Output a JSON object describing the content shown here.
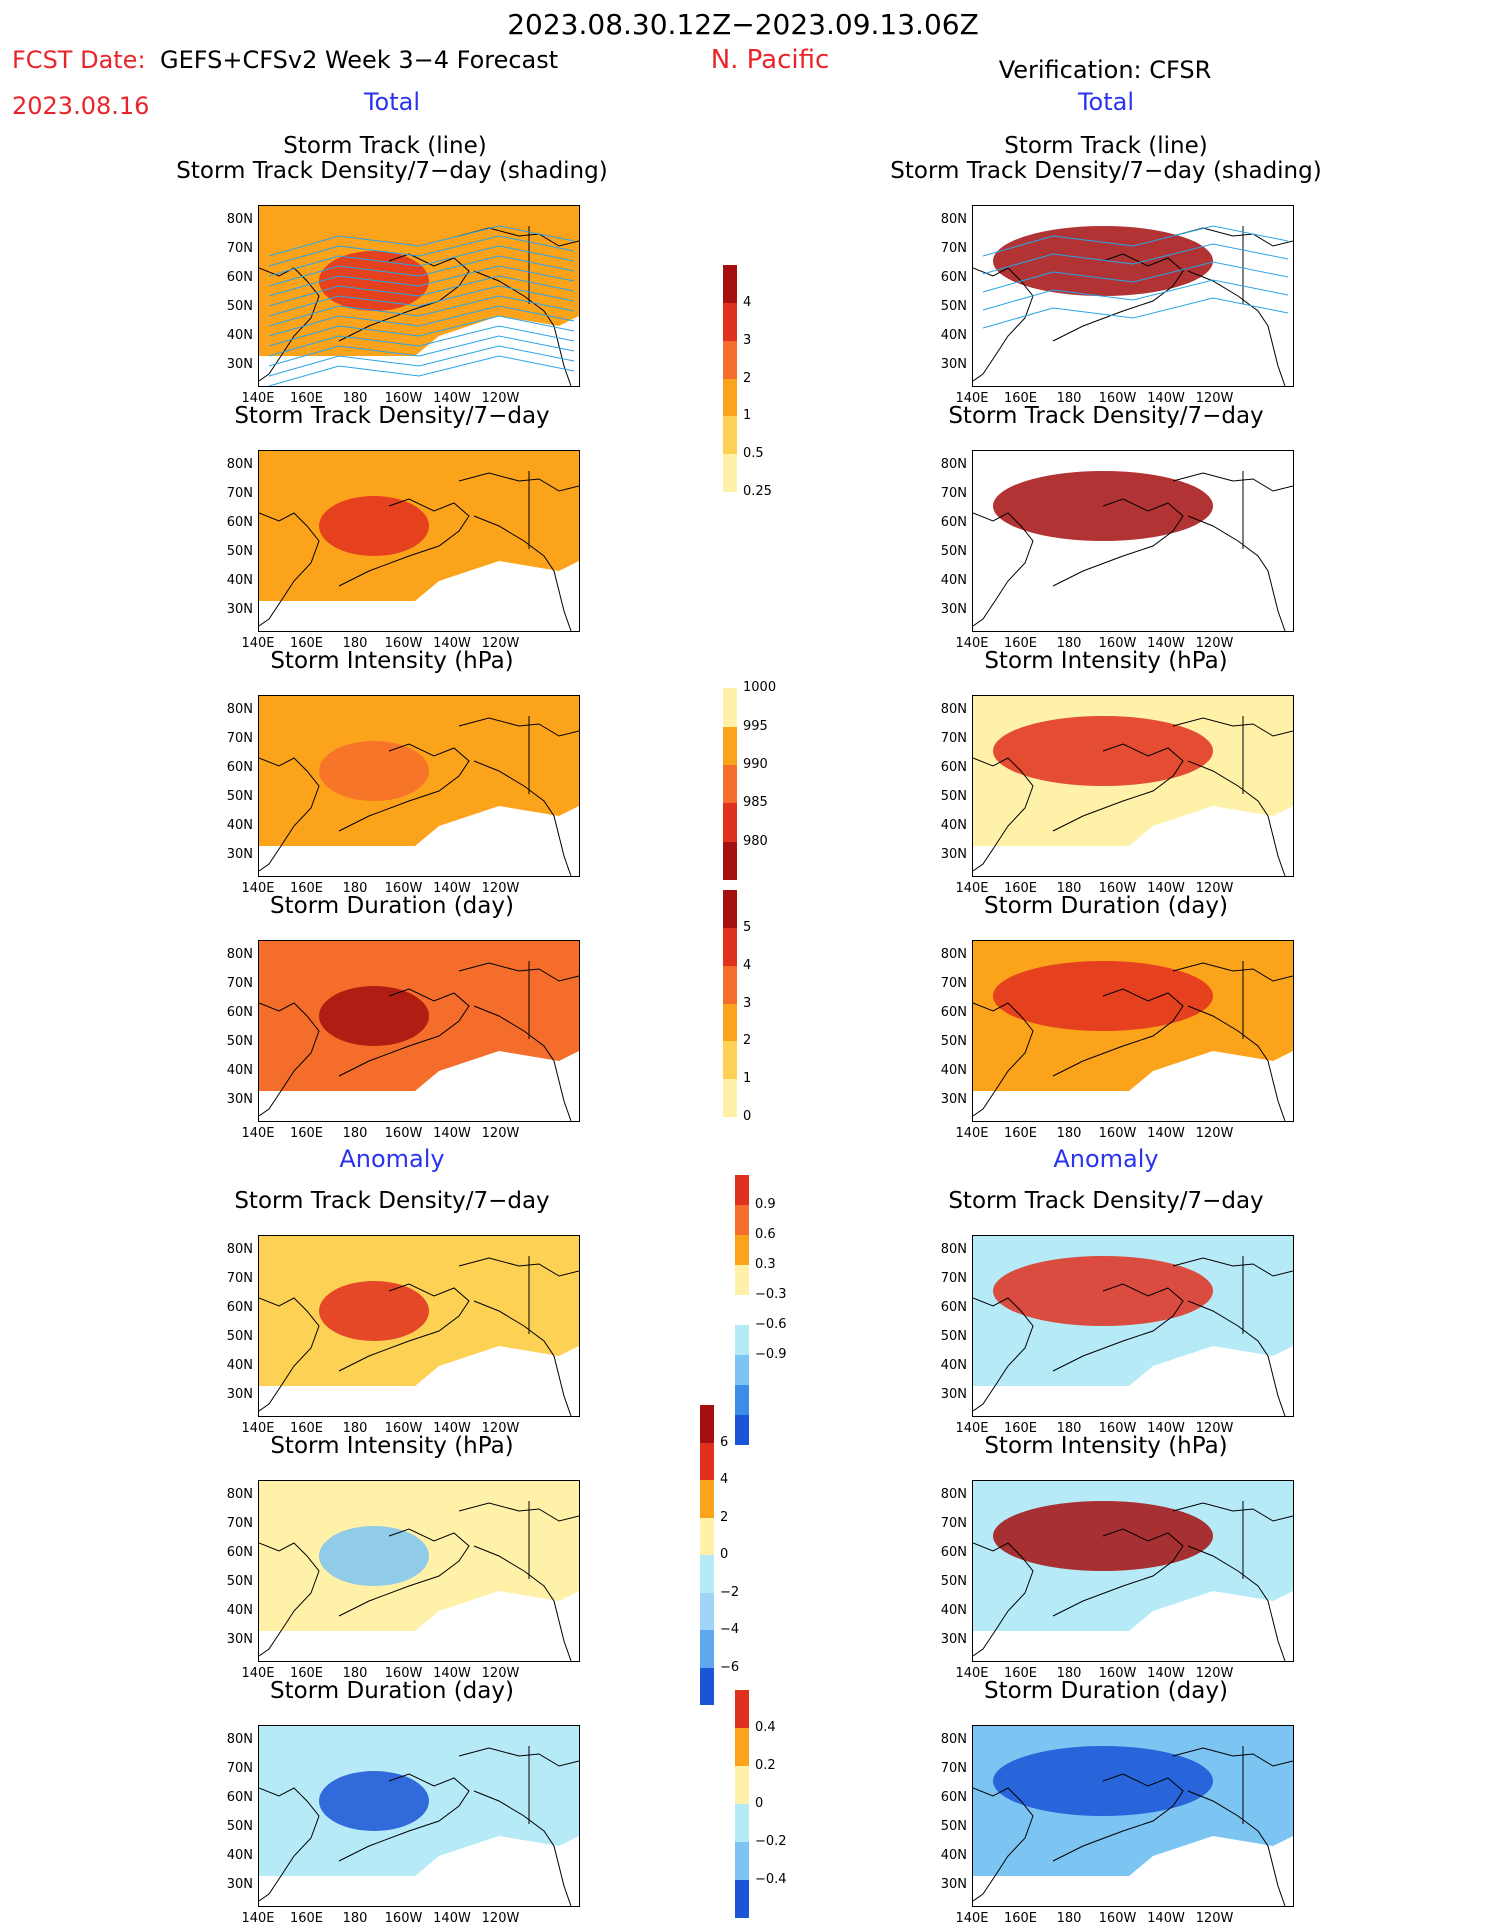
{
  "header": {
    "dates": "2023.08.30.12Z−2023.09.13.06Z",
    "fcst_label": "FCST Date:",
    "fcst_date": "2023.08.16",
    "model": "GEFS+CFSv2 Week 3−4 Forecast",
    "region": "N. Pacific",
    "verification": "Verification: CFSR",
    "left_total": "Total",
    "right_total": "Total",
    "left_anomaly": "Anomaly",
    "right_anomaly": "Anomaly"
  },
  "panel_titles": {
    "track_line": "Storm Track (line)",
    "track_shading": "Storm Track Density/7−day (shading)",
    "density": "Storm Track Density/7−day",
    "intensity": "Storm Intensity (hPa)",
    "duration": "Storm Duration (day)"
  },
  "axes": {
    "lat_labels": [
      "80N",
      "70N",
      "60N",
      "50N",
      "40N",
      "30N"
    ],
    "lon_labels": [
      "140E",
      "160E",
      "180",
      "160W",
      "140W",
      "120W"
    ]
  },
  "colorbars": {
    "density_total": {
      "labels": [
        "4",
        "3",
        "2",
        "1",
        "0.5",
        "0.25"
      ],
      "colors": [
        "#a50f0f",
        "#e0301e",
        "#f46d2a",
        "#fca31c",
        "#fdd154",
        "#fff2a8",
        "#ffffff"
      ]
    },
    "intensity_total": {
      "labels": [
        "1000",
        "995",
        "990",
        "985",
        "980"
      ],
      "colors": [
        "#ffffff",
        "#fff2a8",
        "#fca31c",
        "#f46d2a",
        "#e0301e",
        "#a50f0f"
      ]
    },
    "duration_total": {
      "labels": [
        "5",
        "4",
        "3",
        "2",
        "1",
        "0"
      ],
      "colors": [
        "#a50f0f",
        "#e0301e",
        "#f46d2a",
        "#fca31c",
        "#fdd154",
        "#fff2a8",
        "#ffffff"
      ]
    },
    "density_anom": {
      "labels": [
        "0.9",
        "0.6",
        "0.3",
        "−0.3",
        "−0.6",
        "−0.9"
      ],
      "colors": [
        "#e0301e",
        "#f46d2a",
        "#fca31c",
        "#fff2a8",
        "#ffffff",
        "#b6eaf7",
        "#7cc4f2",
        "#3d8de8",
        "#1a55d6"
      ]
    },
    "intensity_anom": {
      "labels": [
        "6",
        "4",
        "2",
        "0",
        "−2",
        "−4",
        "−6"
      ],
      "colors": [
        "#a50f0f",
        "#e0301e",
        "#fca31c",
        "#fff2a8",
        "#b6eaf7",
        "#9fd6f7",
        "#5fa7ef",
        "#1a55d6"
      ]
    },
    "duration_anom": {
      "labels": [
        "0.4",
        "0.2",
        "0",
        "−0.2",
        "−0.4"
      ],
      "colors": [
        "#e0301e",
        "#fca31c",
        "#fff2a8",
        "#b6eaf7",
        "#7cc4f2",
        "#1a55d6"
      ]
    }
  }
}
